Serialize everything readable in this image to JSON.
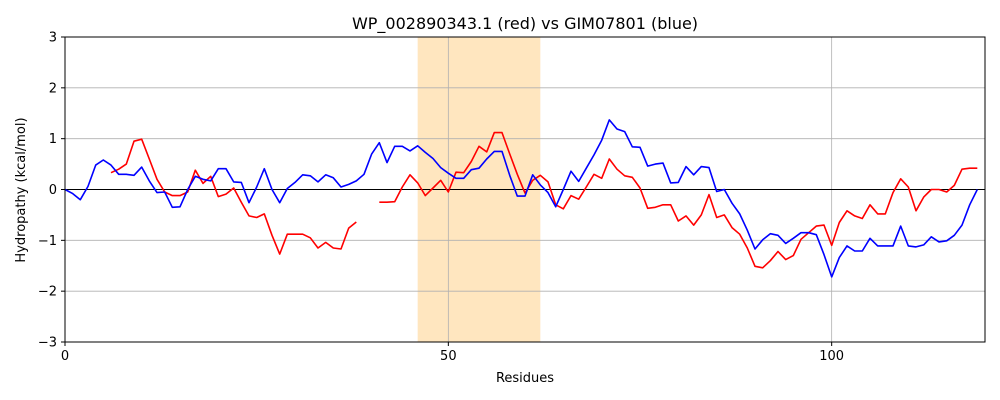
{
  "chart_data": {
    "type": "line",
    "title": "WP_002890343.1 (red) vs GIM07801 (blue)",
    "xlabel": "Residues",
    "ylabel": "Hydropathy (kcal/mol)",
    "xlim": [
      0,
      120
    ],
    "ylim": [
      -3,
      3
    ],
    "xticks": [
      0,
      50,
      100
    ],
    "yticks": [
      -3,
      -2,
      -1,
      0,
      1,
      2,
      3
    ],
    "grid": true,
    "zero_line": true,
    "highlight_region": {
      "x_start": 46,
      "x_end": 62,
      "color": "#ffe6bf"
    },
    "series": [
      {
        "name": "WP_002890343.1",
        "color": "#ff0000",
        "segments": [
          {
            "x": [
              6,
              7,
              8,
              9,
              10,
              11,
              12,
              13,
              14,
              15,
              16,
              17,
              18,
              19,
              20,
              21,
              22,
              23,
              24,
              25,
              26,
              27,
              28,
              29,
              30,
              31,
              32,
              33,
              34,
              35,
              36,
              37,
              38
            ],
            "y": [
              0.33,
              0.4,
              0.5,
              0.95,
              0.99,
              0.6,
              0.2,
              -0.05,
              -0.12,
              -0.12,
              -0.05,
              0.38,
              0.12,
              0.26,
              -0.14,
              -0.09,
              0.03,
              -0.25,
              -0.52,
              -0.55,
              -0.48,
              -0.9,
              -1.27,
              -0.88,
              -0.88,
              -0.88,
              -0.95,
              -1.15,
              -1.04,
              -1.15,
              -1.17,
              -0.76,
              -0.64
            ]
          },
          {
            "x": [
              41,
              42,
              43,
              44,
              45,
              46,
              47,
              48,
              49,
              50,
              51,
              52,
              53,
              54,
              55,
              56,
              57,
              58,
              59,
              60,
              61,
              62,
              63,
              64,
              65,
              66,
              67,
              68,
              69,
              70,
              71,
              72,
              73,
              74,
              75,
              76,
              77,
              78,
              79,
              80,
              81,
              82,
              83,
              84,
              85,
              86,
              87,
              88,
              89,
              90,
              91,
              92,
              93,
              94,
              95,
              96,
              97,
              98,
              99,
              100,
              101,
              102,
              103,
              104,
              105,
              106,
              107,
              108,
              109,
              110,
              111,
              112,
              113,
              114,
              115,
              116,
              117,
              118,
              119
            ],
            "y": [
              -0.25,
              -0.25,
              -0.24,
              0.05,
              0.29,
              0.13,
              -0.12,
              0.03,
              0.18,
              -0.05,
              0.34,
              0.33,
              0.55,
              0.85,
              0.74,
              1.12,
              1.12,
              0.7,
              0.3,
              -0.07,
              0.18,
              0.28,
              0.15,
              -0.3,
              -0.38,
              -0.12,
              -0.19,
              0.05,
              0.3,
              0.22,
              0.6,
              0.4,
              0.27,
              0.24,
              0.03,
              -0.37,
              -0.35,
              -0.3,
              -0.3,
              -0.62,
              -0.52,
              -0.7,
              -0.5,
              -0.1,
              -0.55,
              -0.5,
              -0.75,
              -0.88,
              -1.15,
              -1.51,
              -1.54,
              -1.4,
              -1.22,
              -1.38,
              -1.3,
              -0.98,
              -0.85,
              -0.72,
              -0.7,
              -1.1,
              -0.65,
              -0.42,
              -0.52,
              -0.57,
              -0.3,
              -0.48,
              -0.48,
              -0.06,
              0.21,
              0.05,
              -0.42,
              -0.15,
              0.0,
              0.0,
              -0.05,
              0.08,
              0.4,
              0.42,
              0.42
            ]
          }
        ]
      },
      {
        "name": "GIM07801",
        "color": "#0000ff",
        "segments": [
          {
            "x": [
              0,
              1,
              2,
              3,
              4,
              5,
              6,
              7,
              8,
              9,
              10,
              11,
              12,
              13,
              14,
              15,
              16,
              17,
              18,
              19,
              20,
              21,
              22,
              23,
              24,
              25,
              26,
              27,
              28,
              29,
              30,
              31,
              32,
              33,
              34,
              35,
              36,
              37,
              38,
              39,
              40,
              41,
              42,
              43,
              44,
              45,
              46,
              47,
              48,
              49,
              50,
              51,
              52,
              53,
              54,
              55,
              56,
              57,
              58,
              59,
              60,
              61,
              62,
              63,
              64,
              65,
              66,
              67,
              68,
              69,
              70,
              71,
              72,
              73,
              74,
              75,
              76,
              77,
              78,
              79,
              80,
              81,
              82,
              83,
              84,
              85,
              86,
              87,
              88,
              89,
              90,
              91,
              92,
              93,
              94,
              95,
              96,
              97,
              98,
              99,
              100,
              101,
              102,
              103,
              104,
              105,
              106,
              107,
              108,
              109,
              110,
              111,
              112,
              113,
              114,
              115,
              116,
              117,
              118,
              119
            ],
            "y": [
              0.0,
              -0.08,
              -0.2,
              0.06,
              0.48,
              0.58,
              0.48,
              0.3,
              0.3,
              0.28,
              0.44,
              0.17,
              -0.06,
              -0.05,
              -0.35,
              -0.34,
              0.0,
              0.26,
              0.2,
              0.17,
              0.41,
              0.41,
              0.15,
              0.14,
              -0.26,
              0.05,
              0.41,
              0.0,
              -0.26,
              0.02,
              0.14,
              0.29,
              0.27,
              0.15,
              0.29,
              0.23,
              0.05,
              0.1,
              0.17,
              0.3,
              0.7,
              0.92,
              0.53,
              0.85,
              0.85,
              0.76,
              0.86,
              0.73,
              0.61,
              0.43,
              0.32,
              0.22,
              0.22,
              0.39,
              0.42,
              0.6,
              0.75,
              0.75,
              0.28,
              -0.13,
              -0.13,
              0.29,
              0.09,
              -0.06,
              -0.34,
              0.0,
              0.36,
              0.16,
              0.42,
              0.68,
              0.97,
              1.37,
              1.19,
              1.14,
              0.84,
              0.83,
              0.46,
              0.5,
              0.52,
              0.13,
              0.14,
              0.45,
              0.29,
              0.45,
              0.43,
              -0.04,
              0.0,
              -0.27,
              -0.48,
              -0.8,
              -1.17,
              -0.99,
              -0.87,
              -0.9,
              -1.06,
              -0.96,
              -0.85,
              -0.85,
              -0.89,
              -1.28,
              -1.72,
              -1.34,
              -1.11,
              -1.21,
              -1.21,
              -0.96,
              -1.11,
              -1.11,
              -1.11,
              -0.72,
              -1.11,
              -1.13,
              -1.09,
              -0.93,
              -1.03,
              -1.01,
              -0.9,
              -0.7,
              -0.3,
              0.0
            ]
          }
        ]
      }
    ]
  }
}
